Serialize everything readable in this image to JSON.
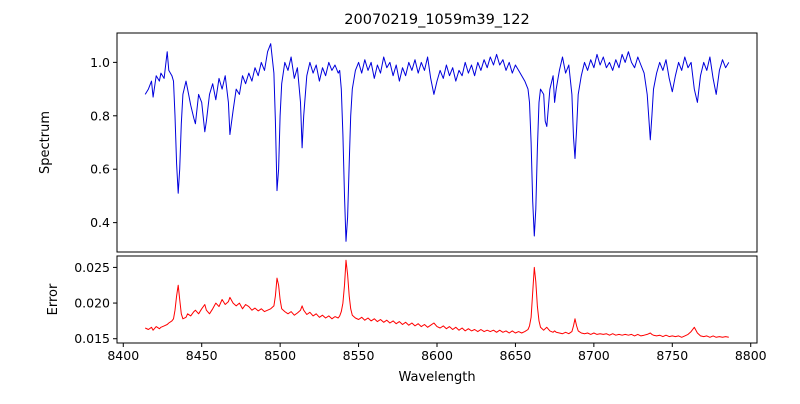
{
  "chart_data": {
    "type": "line",
    "title": "20070219_1059m39_122",
    "xlabel": "Wavelength",
    "xlim": [
      8396,
      8804
    ],
    "x_ticks": [
      8400,
      8450,
      8500,
      8550,
      8600,
      8650,
      8700,
      8750,
      8800
    ],
    "x_tick_labels": [
      "8400",
      "8450",
      "8500",
      "8550",
      "8600",
      "8650",
      "8700",
      "8750",
      "8800"
    ],
    "x": [
      8414,
      8416,
      8418,
      8419,
      8421,
      8423,
      8424,
      8426,
      8428,
      8429,
      8431,
      8432,
      8433,
      8434,
      8435,
      8436,
      8437,
      8438,
      8440,
      8441,
      8443,
      8445,
      8446,
      8448,
      8450,
      8452,
      8453,
      8455,
      8457,
      8459,
      8461,
      8463,
      8465,
      8467,
      8468,
      8470,
      8472,
      8474,
      8476,
      8478,
      8480,
      8482,
      8484,
      8486,
      8488,
      8490,
      8492,
      8494,
      8496,
      8497,
      8498,
      8499,
      8500,
      8501,
      8503,
      8505,
      8507,
      8509,
      8511,
      8513,
      8514,
      8515,
      8517,
      8519,
      8521,
      8523,
      8525,
      8527,
      8529,
      8531,
      8533,
      8535,
      8537,
      8538,
      8539,
      8540,
      8541,
      8542,
      8543,
      8544,
      8545,
      8546,
      8548,
      8550,
      8552,
      8554,
      8556,
      8558,
      8560,
      8562,
      8564,
      8566,
      8568,
      8570,
      8572,
      8574,
      8576,
      8578,
      8580,
      8582,
      8584,
      8586,
      8588,
      8590,
      8592,
      8594,
      8596,
      8598,
      8600,
      8602,
      8604,
      8606,
      8608,
      8610,
      8612,
      8614,
      8616,
      8618,
      8620,
      8622,
      8624,
      8626,
      8628,
      8630,
      8632,
      8634,
      8636,
      8638,
      8640,
      8642,
      8644,
      8646,
      8648,
      8650,
      8652,
      8654,
      8656,
      8658,
      8659,
      8660,
      8661,
      8662,
      8663,
      8664,
      8665,
      8666,
      8668,
      8669,
      8670,
      8672,
      8674,
      8675,
      8676,
      8678,
      8680,
      8682,
      8684,
      8686,
      8687,
      8688,
      8689,
      8690,
      8692,
      8694,
      8696,
      8698,
      8700,
      8702,
      8704,
      8706,
      8708,
      8710,
      8712,
      8714,
      8716,
      8718,
      8720,
      8722,
      8724,
      8726,
      8728,
      8730,
      8732,
      8734,
      8736,
      8737,
      8738,
      8740,
      8742,
      8744,
      8746,
      8748,
      8750,
      8752,
      8754,
      8756,
      8758,
      8760,
      8762,
      8764,
      8766,
      8768,
      8770,
      8772,
      8774,
      8776,
      8778,
      8780,
      8782,
      8784,
      8786
    ],
    "series": [
      {
        "name": "Spectrum",
        "color": "#0000dd",
        "ylim": [
          0.29,
          1.11
        ],
        "y_ticks": [
          0.4,
          0.6,
          0.8,
          1.0
        ],
        "y_tick_labels": [
          "0.4",
          "0.6",
          "0.8",
          "1.0"
        ],
        "values": [
          0.88,
          0.9,
          0.93,
          0.87,
          0.95,
          0.93,
          0.96,
          0.94,
          1.04,
          0.97,
          0.95,
          0.93,
          0.8,
          0.62,
          0.51,
          0.6,
          0.77,
          0.88,
          0.93,
          0.9,
          0.84,
          0.79,
          0.77,
          0.88,
          0.85,
          0.74,
          0.78,
          0.88,
          0.92,
          0.86,
          0.94,
          0.9,
          0.95,
          0.85,
          0.73,
          0.82,
          0.9,
          0.88,
          0.95,
          0.92,
          0.96,
          0.93,
          0.98,
          0.95,
          1.0,
          0.97,
          1.04,
          1.07,
          0.96,
          0.78,
          0.52,
          0.6,
          0.8,
          0.92,
          1.0,
          0.97,
          1.02,
          0.94,
          0.98,
          0.85,
          0.68,
          0.8,
          0.95,
          1.0,
          0.96,
          0.99,
          0.93,
          0.98,
          0.95,
          1.0,
          0.97,
          0.99,
          0.96,
          0.97,
          0.9,
          0.73,
          0.5,
          0.33,
          0.42,
          0.62,
          0.8,
          0.9,
          0.97,
          1.0,
          0.96,
          1.01,
          0.97,
          1.0,
          0.94,
          0.99,
          0.96,
          1.02,
          0.98,
          1.0,
          0.95,
          0.99,
          0.93,
          0.98,
          0.95,
          1.0,
          0.97,
          1.01,
          0.96,
          1.0,
          0.97,
          1.02,
          0.94,
          0.88,
          0.93,
          0.97,
          0.94,
          0.99,
          0.95,
          0.98,
          0.93,
          0.97,
          0.95,
          1.0,
          0.96,
          0.99,
          0.95,
          1.0,
          0.97,
          1.01,
          0.98,
          1.02,
          0.99,
          1.03,
          0.99,
          1.01,
          0.97,
          1.0,
          0.96,
          0.99,
          0.97,
          0.95,
          0.93,
          0.9,
          0.85,
          0.7,
          0.48,
          0.35,
          0.45,
          0.68,
          0.85,
          0.9,
          0.88,
          0.78,
          0.76,
          0.9,
          0.95,
          0.85,
          0.9,
          0.97,
          1.02,
          0.96,
          0.99,
          0.88,
          0.72,
          0.64,
          0.75,
          0.88,
          0.95,
          1.0,
          0.97,
          1.01,
          0.98,
          1.03,
          0.99,
          1.02,
          0.98,
          1.0,
          0.97,
          1.01,
          0.98,
          1.03,
          1.0,
          1.04,
          1.0,
          0.98,
          1.02,
          0.99,
          0.96,
          0.88,
          0.71,
          0.8,
          0.9,
          0.96,
          1.0,
          0.97,
          1.01,
          0.94,
          0.89,
          0.95,
          1.0,
          0.97,
          1.02,
          0.98,
          1.0,
          0.9,
          0.85,
          0.95,
          1.0,
          0.97,
          1.02,
          0.94,
          0.88,
          0.97,
          1.01,
          0.98,
          1.0
        ]
      },
      {
        "name": "Error",
        "color": "#ff0000",
        "ylim": [
          0.0144,
          0.0266
        ],
        "y_ticks": [
          0.015,
          0.02,
          0.025
        ],
        "y_tick_labels": [
          "0.015",
          "0.020",
          "0.025"
        ],
        "values": [
          0.0165,
          0.0163,
          0.0166,
          0.0162,
          0.0167,
          0.0164,
          0.0166,
          0.0168,
          0.017,
          0.0172,
          0.0175,
          0.0178,
          0.019,
          0.021,
          0.0225,
          0.0205,
          0.0185,
          0.0178,
          0.018,
          0.0185,
          0.0182,
          0.0188,
          0.019,
          0.0185,
          0.0192,
          0.0198,
          0.019,
          0.0185,
          0.0192,
          0.02,
          0.0195,
          0.0205,
          0.0198,
          0.0202,
          0.0208,
          0.02,
          0.0196,
          0.02,
          0.0192,
          0.0198,
          0.0195,
          0.019,
          0.0193,
          0.0189,
          0.0192,
          0.0188,
          0.019,
          0.0192,
          0.0196,
          0.021,
          0.0235,
          0.0225,
          0.0205,
          0.0192,
          0.0188,
          0.0185,
          0.0188,
          0.0183,
          0.0186,
          0.019,
          0.0196,
          0.019,
          0.0184,
          0.0187,
          0.0182,
          0.0185,
          0.018,
          0.0183,
          0.0179,
          0.0182,
          0.0178,
          0.0181,
          0.0179,
          0.0182,
          0.0188,
          0.02,
          0.0225,
          0.026,
          0.024,
          0.021,
          0.0192,
          0.0183,
          0.0179,
          0.0177,
          0.018,
          0.0176,
          0.0179,
          0.0175,
          0.0178,
          0.0174,
          0.0177,
          0.0173,
          0.0176,
          0.0172,
          0.0175,
          0.0171,
          0.0174,
          0.017,
          0.0173,
          0.0169,
          0.0172,
          0.0168,
          0.0171,
          0.0167,
          0.017,
          0.0166,
          0.0169,
          0.0172,
          0.0167,
          0.0165,
          0.0168,
          0.0164,
          0.0167,
          0.0163,
          0.0166,
          0.0162,
          0.0165,
          0.0161,
          0.0164,
          0.0161,
          0.0163,
          0.016,
          0.0163,
          0.016,
          0.0162,
          0.016,
          0.0162,
          0.0159,
          0.0162,
          0.0159,
          0.0161,
          0.0158,
          0.0161,
          0.0158,
          0.016,
          0.0158,
          0.016,
          0.0163,
          0.0168,
          0.018,
          0.0215,
          0.025,
          0.023,
          0.0195,
          0.0175,
          0.0166,
          0.0162,
          0.0164,
          0.0166,
          0.0161,
          0.0159,
          0.0161,
          0.0159,
          0.0158,
          0.0157,
          0.0159,
          0.0157,
          0.016,
          0.0168,
          0.0178,
          0.0168,
          0.0161,
          0.0158,
          0.0157,
          0.0158,
          0.0156,
          0.0158,
          0.0156,
          0.0157,
          0.0156,
          0.0157,
          0.0155,
          0.0157,
          0.0155,
          0.0156,
          0.0155,
          0.0156,
          0.0155,
          0.0156,
          0.0154,
          0.0156,
          0.0154,
          0.0155,
          0.0156,
          0.0158,
          0.0156,
          0.0155,
          0.0154,
          0.0155,
          0.0153,
          0.0155,
          0.0153,
          0.0154,
          0.0153,
          0.0154,
          0.0152,
          0.0154,
          0.0156,
          0.016,
          0.0166,
          0.0158,
          0.0154,
          0.0153,
          0.0154,
          0.0152,
          0.0154,
          0.0152,
          0.0153,
          0.0152,
          0.0153,
          0.0152
        ]
      }
    ]
  }
}
